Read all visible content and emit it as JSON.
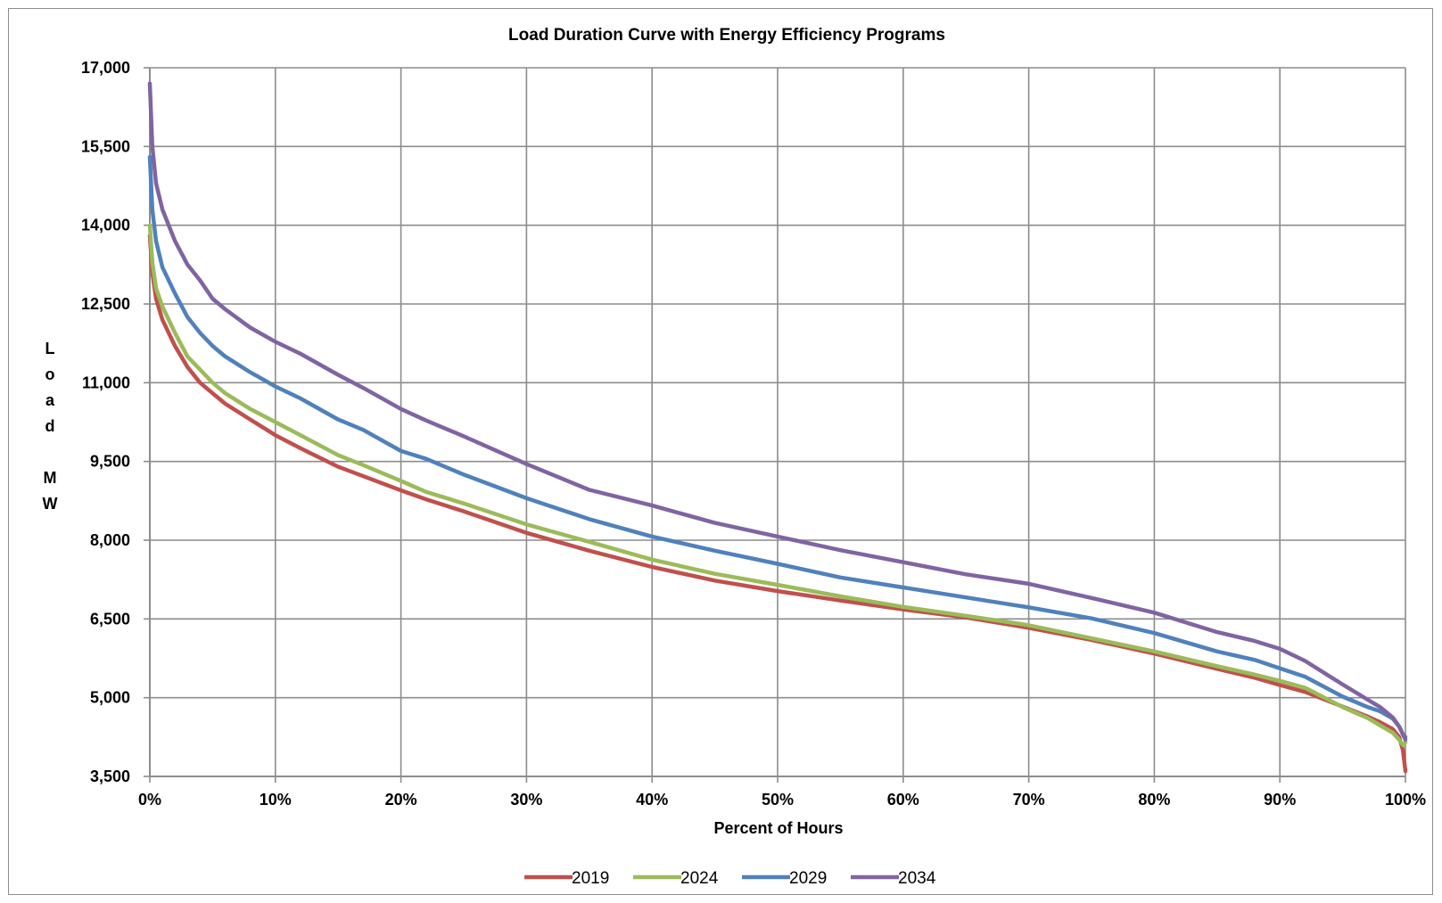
{
  "chart_data": {
    "type": "line",
    "title": "Load Duration Curve with Energy Efficiency Programs",
    "xlabel": "Percent of Hours",
    "ylabel": "Load MW",
    "ylabel_lines": [
      "L",
      "o",
      "a",
      "d",
      "",
      "M",
      "W"
    ],
    "xlim": [
      0,
      100
    ],
    "ylim": [
      3500,
      17000
    ],
    "x_ticks": [
      0,
      10,
      20,
      30,
      40,
      50,
      60,
      70,
      80,
      90,
      100
    ],
    "x_tick_labels": [
      "0%",
      "10%",
      "20%",
      "30%",
      "40%",
      "50%",
      "60%",
      "70%",
      "80%",
      "90%",
      "100%"
    ],
    "y_ticks": [
      3500,
      5000,
      6500,
      8000,
      9500,
      11000,
      12500,
      14000,
      15500,
      17000
    ],
    "y_tick_labels": [
      "3,500",
      "5,000",
      "6,500",
      "8,000",
      "9,500",
      "11,000",
      "12,500",
      "14,000",
      "15,500",
      "17,000"
    ],
    "grid": true,
    "legend_position": "bottom-center",
    "x": [
      0,
      0.2,
      0.5,
      1,
      2,
      3,
      4,
      5,
      6,
      8,
      10,
      12,
      15,
      17,
      20,
      22,
      25,
      30,
      35,
      40,
      45,
      50,
      55,
      60,
      65,
      70,
      75,
      80,
      85,
      88,
      90,
      92,
      95,
      97,
      98,
      99,
      99.5,
      99.8,
      100
    ],
    "series": [
      {
        "name": "2019",
        "color": "#c0504d",
        "values": [
          13800,
          13100,
          12600,
          12200,
          11700,
          11300,
          11000,
          10800,
          10600,
          10300,
          10000,
          9750,
          9400,
          9220,
          8950,
          8780,
          8550,
          8140,
          7800,
          7490,
          7230,
          7030,
          6850,
          6680,
          6530,
          6330,
          6100,
          5840,
          5550,
          5380,
          5240,
          5110,
          4830,
          4640,
          4530,
          4400,
          4250,
          4000,
          3600
        ]
      },
      {
        "name": "2024",
        "color": "#9bbb59",
        "values": [
          14000,
          13300,
          12800,
          12450,
          11950,
          11500,
          11250,
          11000,
          10800,
          10500,
          10250,
          10000,
          9620,
          9430,
          9130,
          8920,
          8700,
          8300,
          7970,
          7630,
          7360,
          7150,
          6930,
          6730,
          6560,
          6380,
          6130,
          5880,
          5600,
          5440,
          5320,
          5190,
          4820,
          4610,
          4470,
          4330,
          4200,
          4100,
          4150
        ]
      },
      {
        "name": "2029",
        "color": "#4f81bd",
        "values": [
          15300,
          14300,
          13700,
          13200,
          12700,
          12250,
          11950,
          11700,
          11500,
          11200,
          10930,
          10700,
          10300,
          10100,
          9700,
          9550,
          9250,
          8800,
          8400,
          8070,
          7800,
          7550,
          7290,
          7100,
          6910,
          6720,
          6510,
          6230,
          5880,
          5720,
          5560,
          5400,
          5020,
          4820,
          4740,
          4600,
          4450,
          4300,
          4250
        ]
      },
      {
        "name": "2034",
        "color": "#8064a2",
        "values": [
          16700,
          15500,
          14800,
          14300,
          13700,
          13250,
          12950,
          12600,
          12400,
          12050,
          11780,
          11550,
          11150,
          10900,
          10500,
          10280,
          9980,
          9450,
          8960,
          8660,
          8330,
          8070,
          7810,
          7580,
          7350,
          7170,
          6900,
          6620,
          6250,
          6080,
          5930,
          5700,
          5250,
          4960,
          4820,
          4620,
          4450,
          4300,
          4200
        ]
      }
    ]
  }
}
